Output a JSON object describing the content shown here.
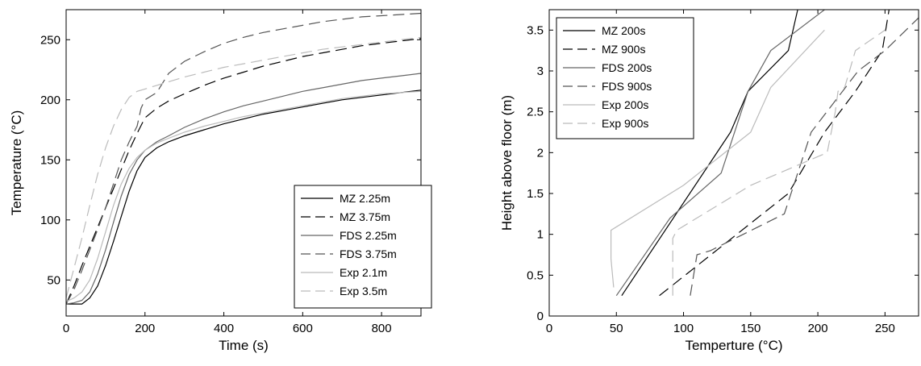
{
  "chart_data": [
    {
      "type": "line",
      "xlabel": "Time (s)",
      "ylabel": "Temperature (°C)",
      "xlim": [
        0,
        900
      ],
      "ylim": [
        20,
        275
      ],
      "xticks": [
        0,
        200,
        400,
        600,
        800
      ],
      "yticks": [
        50,
        100,
        150,
        200,
        250
      ],
      "grid": false,
      "legend_position": "bottom-right",
      "series": [
        {
          "name": "MZ 2.25m",
          "color": "#000000",
          "dash": "solid",
          "x": [
            0,
            40,
            60,
            80,
            100,
            120,
            140,
            160,
            180,
            200,
            230,
            260,
            300,
            350,
            400,
            450,
            500,
            550,
            600,
            650,
            700,
            750,
            800,
            850,
            900
          ],
          "y": [
            30,
            30,
            35,
            45,
            62,
            82,
            103,
            124,
            141,
            152,
            160,
            165,
            170,
            175,
            180,
            184,
            188,
            191,
            194,
            197,
            200,
            202,
            204,
            206,
            208
          ]
        },
        {
          "name": "MZ 3.75m",
          "color": "#000000",
          "dash": "long",
          "x": [
            0,
            20,
            40,
            60,
            80,
            100,
            120,
            140,
            160,
            180,
            200,
            230,
            260,
            300,
            350,
            400,
            450,
            500,
            550,
            600,
            650,
            700,
            750,
            800,
            850,
            900
          ],
          "y": [
            30,
            45,
            62,
            78,
            94,
            110,
            126,
            142,
            158,
            172,
            185,
            193,
            199,
            205,
            212,
            218,
            223,
            228,
            232,
            236,
            239,
            242,
            245,
            247,
            249,
            251
          ]
        },
        {
          "name": "FDS 2.25m",
          "color": "#666666",
          "dash": "solid",
          "x": [
            0,
            20,
            40,
            60,
            80,
            100,
            120,
            140,
            160,
            180,
            200,
            230,
            260,
            300,
            350,
            400,
            450,
            500,
            550,
            600,
            650,
            700,
            750,
            800,
            850,
            900
          ],
          "y": [
            30,
            31,
            33,
            40,
            55,
            75,
            98,
            120,
            138,
            150,
            158,
            165,
            170,
            177,
            184,
            190,
            195,
            199,
            203,
            207,
            210,
            213,
            216,
            218,
            220,
            222
          ]
        },
        {
          "name": "FDS 3.75m",
          "color": "#555555",
          "dash": "long",
          "x": [
            0,
            20,
            40,
            60,
            80,
            100,
            120,
            140,
            160,
            180,
            190,
            200,
            230,
            260,
            300,
            350,
            400,
            450,
            500,
            550,
            600,
            650,
            700,
            750,
            800,
            850,
            900
          ],
          "y": [
            30,
            42,
            58,
            75,
            92,
            110,
            130,
            150,
            165,
            178,
            193,
            200,
            206,
            222,
            232,
            240,
            247,
            252,
            256,
            259,
            262,
            265,
            267,
            269,
            270,
            271,
            272
          ]
        },
        {
          "name": "Exp 2.1m",
          "color": "#bbbbbb",
          "dash": "solid",
          "x": [
            0,
            20,
            40,
            60,
            80,
            100,
            120,
            140,
            160,
            180,
            200,
            230,
            260,
            300,
            350,
            400,
            450,
            500,
            550,
            600,
            650,
            700,
            750,
            800,
            850,
            900
          ],
          "y": [
            32,
            35,
            40,
            50,
            68,
            90,
            112,
            130,
            143,
            152,
            158,
            164,
            168,
            173,
            178,
            182,
            186,
            189,
            192,
            195,
            198,
            201,
            203,
            205,
            206,
            207
          ]
        },
        {
          "name": "Exp 3.5m",
          "color": "#bbbbbb",
          "dash": "long",
          "x": [
            0,
            20,
            40,
            60,
            80,
            100,
            120,
            140,
            160,
            180,
            200,
            230,
            260,
            300,
            350,
            400,
            450,
            500,
            550,
            600,
            650,
            700,
            750,
            800,
            850,
            900
          ],
          "y": [
            35,
            60,
            85,
            112,
            138,
            160,
            178,
            192,
            202,
            207,
            209,
            212,
            215,
            219,
            223,
            227,
            230,
            233,
            236,
            239,
            242,
            244,
            246,
            248,
            250,
            252
          ]
        }
      ]
    },
    {
      "type": "line",
      "xlabel": "Temperture (°C)",
      "ylabel": "Height above floor (m)",
      "xlim": [
        0,
        275
      ],
      "ylim": [
        0,
        3.75
      ],
      "xticks": [
        0,
        50,
        100,
        150,
        200,
        250
      ],
      "yticks": [
        0,
        0.5,
        1,
        1.5,
        2,
        2.5,
        3,
        3.5
      ],
      "grid": false,
      "legend_position": "top-left",
      "series": [
        {
          "name": "MZ 200s",
          "color": "#000000",
          "dash": "solid",
          "x": [
            54,
            135,
            148,
            178,
            185
          ],
          "y": [
            0.25,
            2.25,
            2.75,
            3.25,
            3.75
          ]
        },
        {
          "name": "MZ 900s",
          "color": "#000000",
          "dash": "long",
          "x": [
            82,
            178,
            205,
            228,
            248,
            253
          ],
          "y": [
            0.25,
            1.5,
            2.25,
            2.75,
            3.25,
            3.75
          ]
        },
        {
          "name": "FDS 200s",
          "color": "#666666",
          "dash": "solid",
          "x": [
            50,
            90,
            128,
            148,
            165,
            205
          ],
          "y": [
            0.25,
            1.2,
            1.75,
            2.75,
            3.25,
            3.75
          ]
        },
        {
          "name": "FDS 900s",
          "color": "#555555",
          "dash": "long",
          "x": [
            105,
            110,
            120,
            175,
            195,
            230,
            250,
            275
          ],
          "y": [
            0.25,
            0.75,
            0.8,
            1.25,
            2.25,
            3.0,
            3.25,
            3.65
          ]
        },
        {
          "name": "Exp 200s",
          "color": "#bbbbbb",
          "dash": "solid",
          "x": [
            48,
            46,
            46,
            100,
            150,
            165,
            205
          ],
          "y": [
            0.35,
            0.7,
            1.05,
            1.6,
            2.25,
            2.8,
            3.5
          ]
        },
        {
          "name": "Exp 900s",
          "color": "#bbbbbb",
          "dash": "long",
          "x": [
            92,
            92,
            95,
            150,
            207,
            213,
            215,
            220,
            228,
            250
          ],
          "y": [
            0.25,
            0.95,
            1.05,
            1.6,
            2.0,
            2.5,
            2.75,
            2.8,
            3.25,
            3.5
          ]
        }
      ]
    }
  ]
}
